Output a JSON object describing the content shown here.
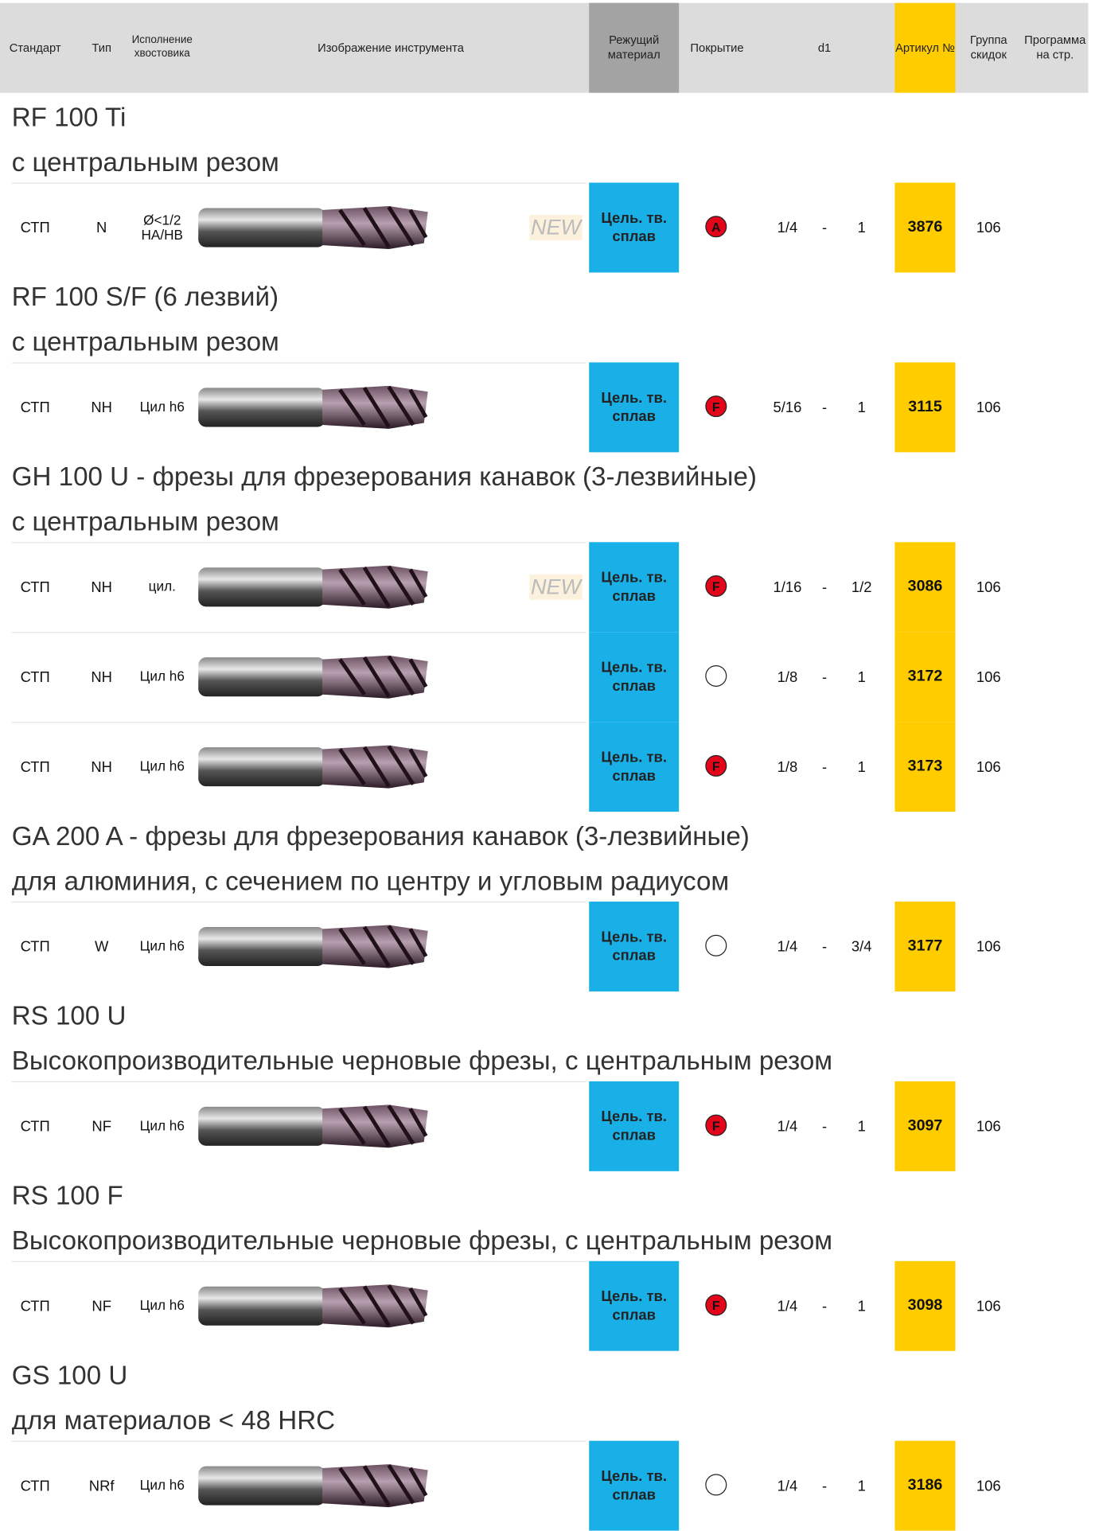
{
  "header": {
    "standard": "Стандарт",
    "type": "Тип",
    "shank": "Исполнение хвостовика",
    "image": "Изображение инструмента",
    "material": "Режущий материал",
    "coating": "Покрытие",
    "d1": "d1",
    "article": "Артикул №",
    "group": "Группа скидок",
    "program": "Программа на стр."
  },
  "sections": [
    {
      "title": "RF 100 Ti",
      "subtitle": "с центральным резом",
      "rows": [
        {
          "standard": "СТП",
          "type": "N",
          "shank": "Ø<1/2 HA/HB",
          "new": "NEW",
          "material": "Цель. тв. сплав",
          "coating": "A",
          "d1_from": "1/4",
          "dash": "-",
          "d1_to": "1",
          "article": "3876",
          "group": "106"
        }
      ]
    },
    {
      "title": "RF 100 S/F (6 лезвий)",
      "subtitle": "с центральным резом",
      "rows": [
        {
          "standard": "СТП",
          "type": "NH",
          "shank": "Цил h6",
          "material": "Цель. тв. сплав",
          "coating": "F",
          "d1_from": "5/16",
          "dash": "-",
          "d1_to": "1",
          "article": "3115",
          "group": "106"
        }
      ]
    },
    {
      "title": "GH 100 U - фрезы для фрезерования канавок (3-лезвийные)",
      "subtitle": "с центральным резом",
      "rows": [
        {
          "standard": "СТП",
          "type": "NH",
          "shank": "цил.",
          "new": "NEW",
          "material": "Цель. тв. сплав",
          "coating": "F",
          "d1_from": "1/16",
          "dash": "-",
          "d1_to": "1/2",
          "article": "3086",
          "group": "106"
        },
        {
          "standard": "СТП",
          "type": "NH",
          "shank": "Цил h6",
          "material": "Цель. тв. сплав",
          "d1_from": "1/8",
          "dash": "-",
          "d1_to": "1",
          "article": "3172",
          "group": "106"
        },
        {
          "standard": "СТП",
          "type": "NH",
          "shank": "Цил h6",
          "material": "Цель. тв. сплав",
          "coating": "F",
          "d1_from": "1/8",
          "dash": "-",
          "d1_to": "1",
          "article": "3173",
          "group": "106"
        }
      ]
    },
    {
      "title": "GA 200 A - фрезы для фрезерования канавок (3-лезвийные)",
      "subtitle": "для алюминия, с сечением по центру и угловым радиусом",
      "rows": [
        {
          "standard": "СТП",
          "type": "W",
          "shank": "Цил h6",
          "material": "Цель. тв. сплав",
          "d1_from": "1/4",
          "dash": "-",
          "d1_to": "3/4",
          "article": "3177",
          "group": "106"
        }
      ]
    },
    {
      "title": "RS 100 U",
      "subtitle": "Высокопроизводительные черновые фрезы, с центральным резом",
      "rows": [
        {
          "standard": "СТП",
          "type": "NF",
          "shank": "Цил h6",
          "material": "Цель. тв. сплав",
          "coating": "F",
          "d1_from": "1/4",
          "dash": "-",
          "d1_to": "1",
          "article": "3097",
          "group": "106"
        }
      ]
    },
    {
      "title": "RS 100 F",
      "subtitle": "Высокопроизводительные черновые фрезы, с центральным резом",
      "rows": [
        {
          "standard": "СТП",
          "type": "NF",
          "shank": "Цил h6",
          "material": "Цель. тв. сплав",
          "coating": "F",
          "d1_from": "1/4",
          "dash": "-",
          "d1_to": "1",
          "article": "3098",
          "group": "106"
        }
      ]
    },
    {
      "title": "GS 100 U",
      "subtitle": "для материалов < 48 HRC",
      "rows": [
        {
          "standard": "СТП",
          "type": "NRf",
          "shank": "Цил h6",
          "material": "Цель. тв. сплав",
          "d1_from": "1/4",
          "dash": "-",
          "d1_to": "1",
          "article": "3186",
          "group": "106"
        }
      ]
    }
  ]
}
